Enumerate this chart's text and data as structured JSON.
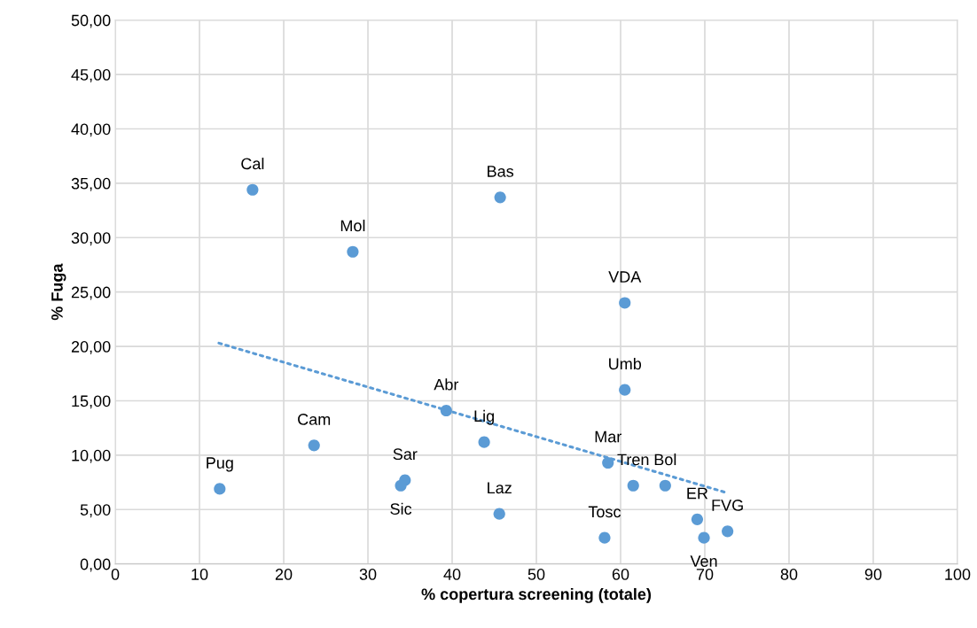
{
  "chart_data": {
    "type": "scatter",
    "xlabel": "% copertura screening (totale)",
    "ylabel": "% Fuga",
    "xlim": [
      0,
      100
    ],
    "xticks": [
      0,
      10,
      20,
      30,
      40,
      50,
      60,
      70,
      80,
      90,
      100
    ],
    "ylim": [
      0,
      50
    ],
    "yticks": [
      {
        "value": 0,
        "label": "0,00"
      },
      {
        "value": 5,
        "label": "5,00"
      },
      {
        "value": 10,
        "label": "10,00"
      },
      {
        "value": 15,
        "label": "15,00"
      },
      {
        "value": 20,
        "label": "20,00"
      },
      {
        "value": 25,
        "label": "25,00"
      },
      {
        "value": 30,
        "label": "30,00"
      },
      {
        "value": 35,
        "label": "35,00"
      },
      {
        "value": 40,
        "label": "40,00"
      },
      {
        "value": 45,
        "label": "45,00"
      },
      {
        "value": 50,
        "label": "50,00"
      }
    ],
    "grid": true,
    "legend": false,
    "marker": "circle",
    "series": [
      {
        "color": "#5b9bd5",
        "x": [
          16.3,
          28.2,
          45.7,
          60.5,
          60.5,
          39.3,
          23.6,
          43.8,
          58.5,
          61.5,
          65.3,
          12.4,
          34.4,
          33.9,
          45.6,
          58.1,
          69.1,
          69.9,
          72.7
        ],
        "values": [
          34.4,
          28.7,
          33.7,
          24.0,
          16.0,
          14.1,
          10.9,
          11.2,
          9.3,
          7.2,
          7.2,
          6.9,
          7.7,
          7.2,
          4.6,
          2.4,
          4.1,
          2.4,
          3.0
        ]
      },
      {
        "type": "line",
        "color": "#5b9bd5",
        "line_style": "dotted",
        "marker": "none",
        "x": [
          12.3,
          72.8
        ],
        "values": [
          20.3,
          6.5
        ]
      }
    ],
    "annotations": [
      {
        "text": "Cal",
        "x": 16.3,
        "y": 34.4
      },
      {
        "text": "Mol",
        "x": 28.2,
        "y": 28.7
      },
      {
        "text": "Bas",
        "x": 45.7,
        "y": 33.7
      },
      {
        "text": "VDA",
        "x": 60.5,
        "y": 24.0
      },
      {
        "text": "Umb",
        "x": 60.5,
        "y": 16.0
      },
      {
        "text": "Abr",
        "x": 39.3,
        "y": 14.1
      },
      {
        "text": "Cam",
        "x": 23.6,
        "y": 10.9
      },
      {
        "text": "Lig",
        "x": 43.8,
        "y": 11.2
      },
      {
        "text": "Mar",
        "x": 58.5,
        "y": 9.3
      },
      {
        "text": "Tren",
        "x": 61.5,
        "y": 7.2
      },
      {
        "text": "Bol",
        "x": 65.3,
        "y": 7.2
      },
      {
        "text": "Pug",
        "x": 12.4,
        "y": 6.9
      },
      {
        "text": "Sar",
        "x": 34.4,
        "y": 7.7
      },
      {
        "text": "Sic",
        "x": 33.9,
        "y": 7.2
      },
      {
        "text": "Laz",
        "x": 45.6,
        "y": 4.6
      },
      {
        "text": "Tosc",
        "x": 58.1,
        "y": 2.4
      },
      {
        "text": "ER",
        "x": 69.1,
        "y": 4.1
      },
      {
        "text": "Ven",
        "x": 69.9,
        "y": 2.4
      },
      {
        "text": "FVG",
        "x": 72.7,
        "y": 3.0
      }
    ]
  }
}
